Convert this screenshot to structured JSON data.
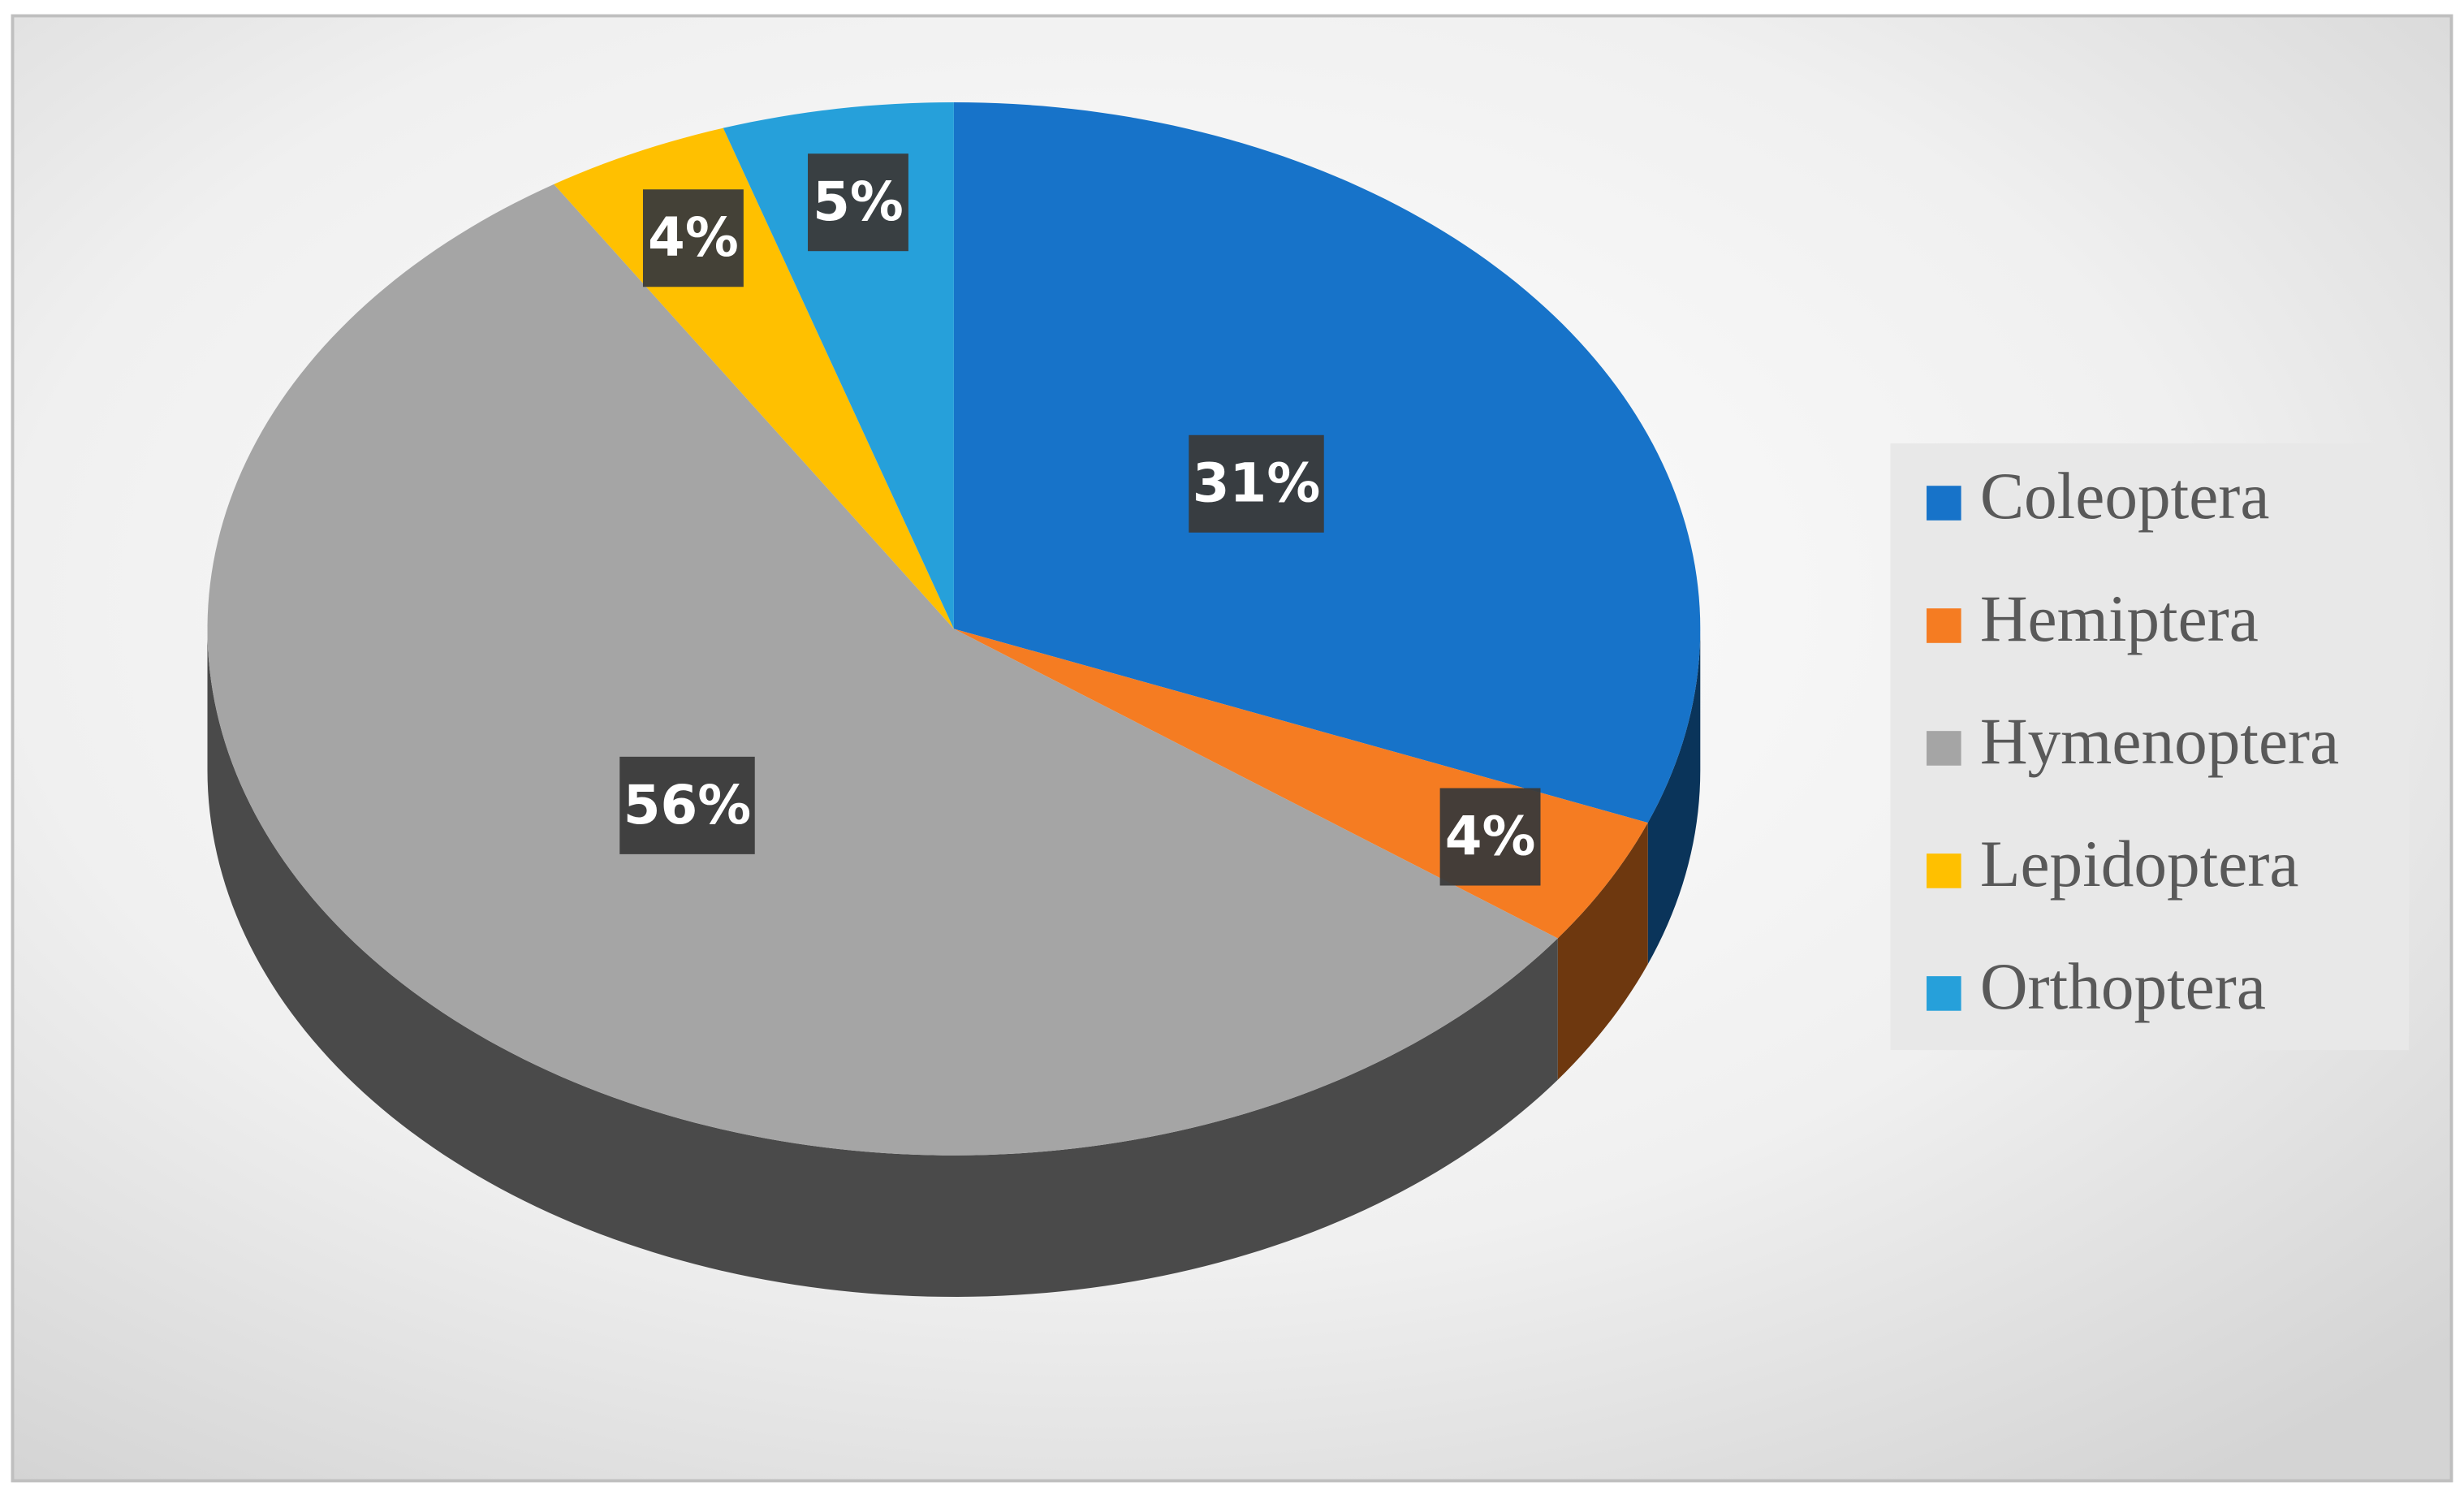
{
  "chart_data": {
    "type": "pie",
    "categories": [
      "Coleoptera",
      "Hemiptera",
      "Hymenoptera",
      "Lepidoptera",
      "Orthoptera"
    ],
    "values": [
      31,
      4,
      56,
      4,
      5
    ],
    "value_labels": [
      "31%",
      "4%",
      "56%",
      "4%",
      "5%"
    ],
    "colors": [
      "#1773c9",
      "#f57c22",
      "#a5a5a5",
      "#ffc000",
      "#26a0da"
    ],
    "legend": "right"
  }
}
